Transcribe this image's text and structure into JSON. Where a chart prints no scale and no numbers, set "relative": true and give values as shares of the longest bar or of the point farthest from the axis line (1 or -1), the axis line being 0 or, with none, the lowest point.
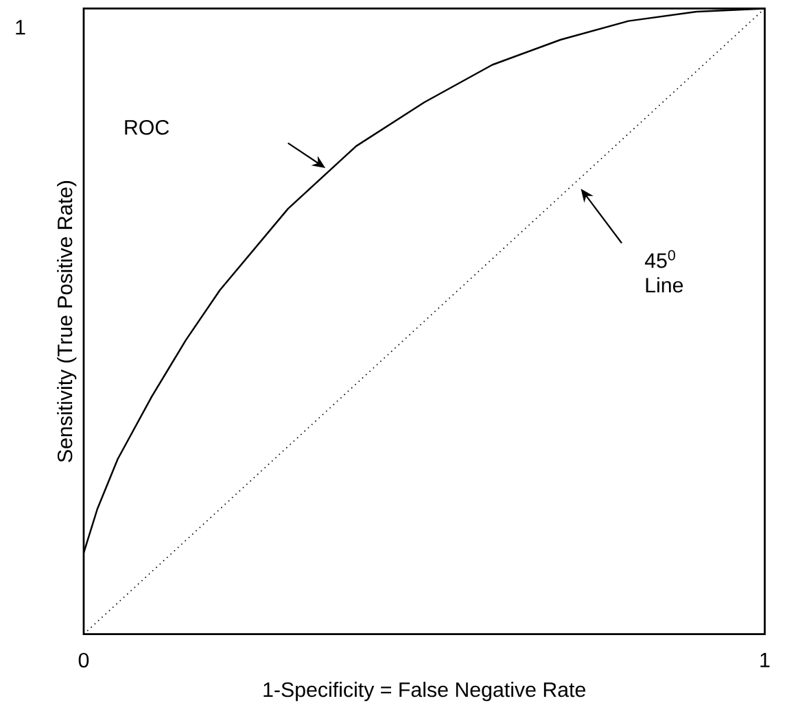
{
  "chart_data": {
    "type": "line",
    "xlabel": "1-Specificity = False Negative Rate",
    "ylabel": "Sensitivity (True Positive Rate)",
    "xlim": [
      0,
      1
    ],
    "xticks": [
      0,
      1
    ],
    "relative": true,
    "series": [
      {
        "color": "#000000",
        "line_style": "solid",
        "marker": "none",
        "x": [
          0,
          0.02,
          0.05,
          0.1,
          0.15,
          0.2,
          0.3,
          0.4,
          0.5,
          0.6,
          0.7,
          0.8,
          0.9,
          1
        ],
        "values": [
          0.13,
          0.2,
          0.28,
          0.38,
          0.47,
          0.55,
          0.68,
          0.78,
          0.85,
          0.91,
          0.95,
          0.98,
          0.995,
          1
        ]
      },
      {
        "color": "#000000",
        "line_style": "dotted",
        "marker": "none",
        "x": [
          0,
          1
        ],
        "values": [
          0,
          1
        ]
      }
    ],
    "annotations": [
      "1",
      "ROC",
      "45$^{0}$ Line"
    ]
  }
}
